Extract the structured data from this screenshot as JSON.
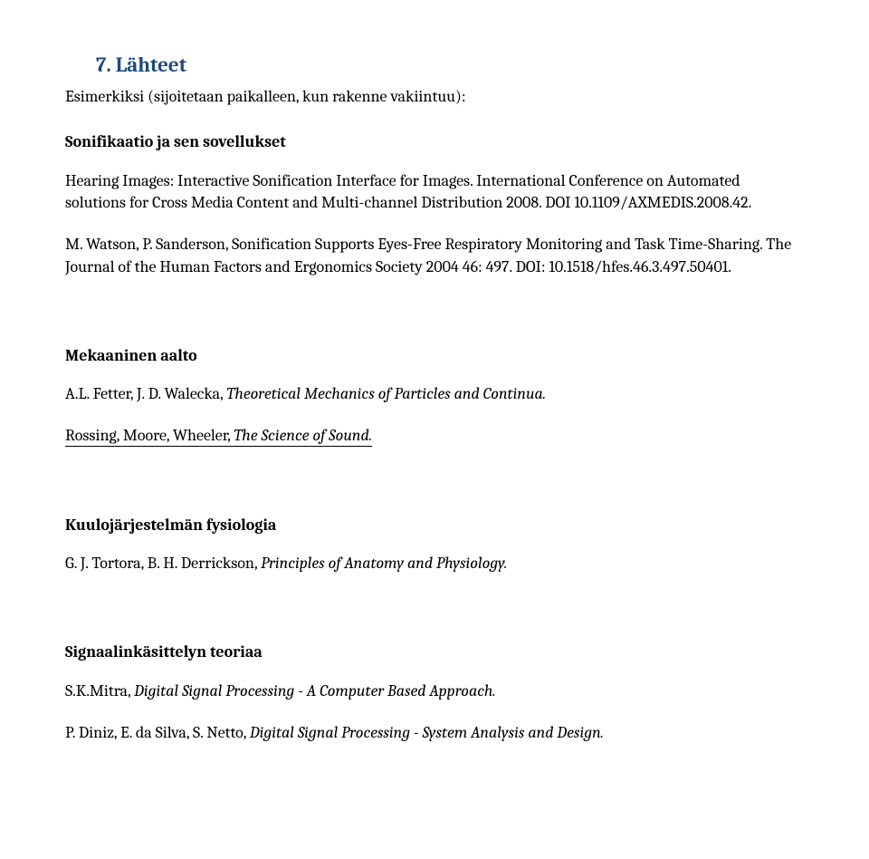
{
  "heading": "7.  Lähteet",
  "intro": "Esimerkiksi (sijoitetaan paikalleen, kun rakenne vakiintuu):",
  "sections": {
    "sonifikaatio": {
      "title": "Sonifikaatio ja sen sovellukset",
      "entry1": "Hearing Images: Interactive Sonification Interface for Images. International Conference on Automated solutions for Cross Media Content and Multi-channel Distribution 2008. DOI 10.1109/AXMEDIS.2008.42.",
      "entry2": "M. Watson, P. Sanderson, Sonification Supports Eyes-Free Respiratory Monitoring and Task Time-Sharing. The Journal of the Human Factors and Ergonomics Society 2004 46: 497. DOI: 10.1518/hfes.46.3.497.50401."
    },
    "mekaaninen": {
      "title": "Mekaaninen aalto",
      "entry1_pre": "A.L. Fetter, J. D. Walecka, ",
      "entry1_italic": "Theoretical Mechanics of Particles and Continua.",
      "entry2_pre": "Rossing, Moore, Wheeler, ",
      "entry2_italic": "The Science of Sound."
    },
    "kuulo": {
      "title": "Kuulojärjestelmän fysiologia",
      "entry1_pre": "G. J. Tortora, B. H. Derrickson, ",
      "entry1_italic": "Principles of Anatomy and Physiology."
    },
    "signaali": {
      "title": "Signaalinkäsittelyn teoriaa",
      "entry1_pre": "S.K.Mitra, ",
      "entry1_italic": "Digital Signal Processing - A Computer Based Approach.",
      "entry2_pre": "P. Diniz, E. da Silva, S. Netto, ",
      "entry2_italic": "Digital Signal Processing - System Analysis and Design."
    }
  }
}
